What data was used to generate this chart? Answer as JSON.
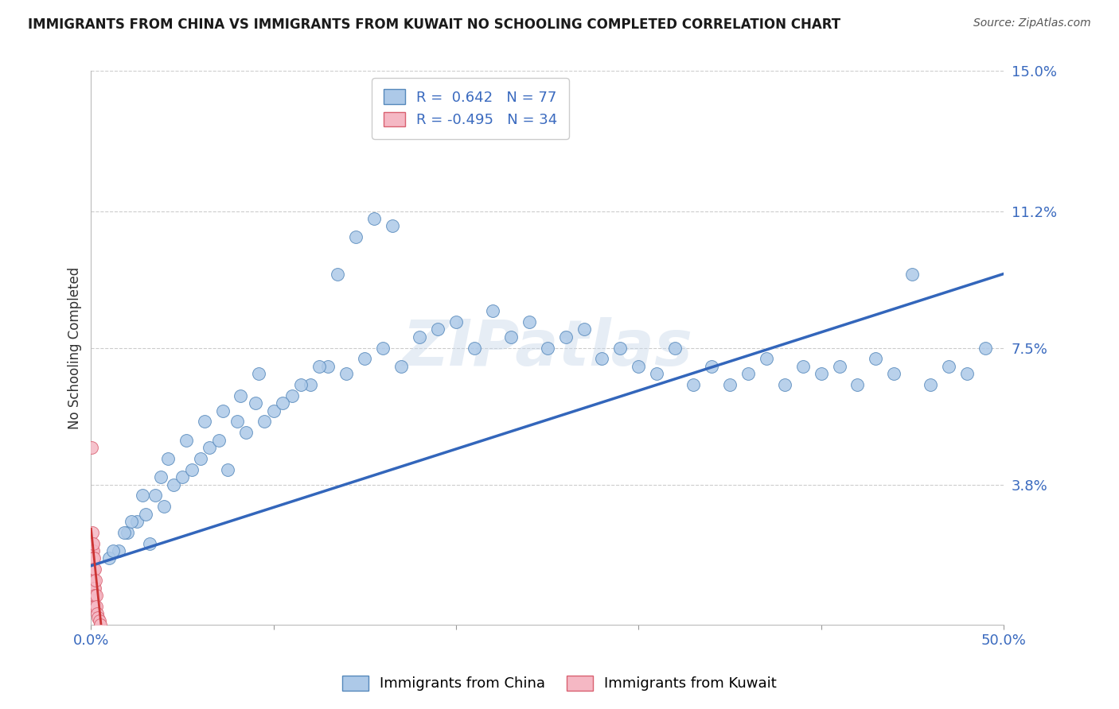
{
  "title": "IMMIGRANTS FROM CHINA VS IMMIGRANTS FROM KUWAIT NO SCHOOLING COMPLETED CORRELATION CHART",
  "source": "Source: ZipAtlas.com",
  "ylabel": "No Schooling Completed",
  "xlim": [
    0.0,
    50.0
  ],
  "ylim": [
    0.0,
    15.0
  ],
  "ytick_positions": [
    0.0,
    3.8,
    7.5,
    11.2,
    15.0
  ],
  "ytick_labels": [
    "",
    "3.8%",
    "7.5%",
    "11.2%",
    "15.0%"
  ],
  "xtick_positions": [
    0.0,
    10.0,
    20.0,
    30.0,
    40.0,
    50.0
  ],
  "xtick_labels": [
    "0.0%",
    "",
    "",
    "",
    "",
    "50.0%"
  ],
  "watermark": "ZIPatlas",
  "china_color": "#adc9e8",
  "china_edge_color": "#5588bb",
  "kuwait_color": "#f5b8c4",
  "kuwait_edge_color": "#d96070",
  "trend_china_color": "#3366bb",
  "trend_kuwait_color": "#cc3333",
  "background_color": "#ffffff",
  "grid_color": "#cccccc",
  "china_R": 0.642,
  "china_N": 77,
  "kuwait_R": -0.495,
  "kuwait_N": 34,
  "china_trend_x0": 0.0,
  "china_trend_y0": 1.6,
  "china_trend_x1": 50.0,
  "china_trend_y1": 9.5,
  "kuwait_trend_x0": 0.0,
  "kuwait_trend_y0": 2.6,
  "kuwait_trend_x1": 0.55,
  "kuwait_trend_y1": 0.0,
  "china_x": [
    1.5,
    2.0,
    2.5,
    3.0,
    3.2,
    3.5,
    4.0,
    4.5,
    5.0,
    5.5,
    6.0,
    6.5,
    7.0,
    7.5,
    8.0,
    8.5,
    9.0,
    9.5,
    10.0,
    11.0,
    12.0,
    13.0,
    14.0,
    15.0,
    16.0,
    17.0,
    18.0,
    19.0,
    20.0,
    21.0,
    22.0,
    23.0,
    24.0,
    25.0,
    26.0,
    27.0,
    28.0,
    29.0,
    30.0,
    31.0,
    32.0,
    33.0,
    34.0,
    35.0,
    36.0,
    37.0,
    38.0,
    39.0,
    40.0,
    41.0,
    42.0,
    43.0,
    44.0,
    45.0,
    46.0,
    47.0,
    48.0,
    49.0,
    1.0,
    1.2,
    1.8,
    2.2,
    2.8,
    3.8,
    4.2,
    5.2,
    6.2,
    7.2,
    8.2,
    9.2,
    10.5,
    11.5,
    12.5,
    13.5,
    14.5,
    15.5,
    16.5
  ],
  "china_y": [
    2.0,
    2.5,
    2.8,
    3.0,
    2.2,
    3.5,
    3.2,
    3.8,
    4.0,
    4.2,
    4.5,
    4.8,
    5.0,
    4.2,
    5.5,
    5.2,
    6.0,
    5.5,
    5.8,
    6.2,
    6.5,
    7.0,
    6.8,
    7.2,
    7.5,
    7.0,
    7.8,
    8.0,
    8.2,
    7.5,
    8.5,
    7.8,
    8.2,
    7.5,
    7.8,
    8.0,
    7.2,
    7.5,
    7.0,
    6.8,
    7.5,
    6.5,
    7.0,
    6.5,
    6.8,
    7.2,
    6.5,
    7.0,
    6.8,
    7.0,
    6.5,
    7.2,
    6.8,
    9.5,
    6.5,
    7.0,
    6.8,
    7.5,
    1.8,
    2.0,
    2.5,
    2.8,
    3.5,
    4.0,
    4.5,
    5.0,
    5.5,
    5.8,
    6.2,
    6.8,
    6.0,
    6.5,
    7.0,
    9.5,
    10.5,
    11.0,
    10.8
  ],
  "kuwait_x": [
    0.04,
    0.05,
    0.06,
    0.07,
    0.07,
    0.08,
    0.08,
    0.09,
    0.09,
    0.1,
    0.1,
    0.11,
    0.11,
    0.12,
    0.12,
    0.13,
    0.14,
    0.14,
    0.15,
    0.15,
    0.16,
    0.17,
    0.18,
    0.19,
    0.2,
    0.21,
    0.22,
    0.25,
    0.28,
    0.3,
    0.33,
    0.38,
    0.44,
    0.5
  ],
  "kuwait_y": [
    4.8,
    1.8,
    2.2,
    2.0,
    1.5,
    2.5,
    1.2,
    1.8,
    1.0,
    2.0,
    1.5,
    1.8,
    1.2,
    2.2,
    1.0,
    1.5,
    0.8,
    1.2,
    1.8,
    1.5,
    1.2,
    1.0,
    0.8,
    1.5,
    1.0,
    0.8,
    0.5,
    1.2,
    0.8,
    0.5,
    0.3,
    0.2,
    0.1,
    0.0
  ]
}
